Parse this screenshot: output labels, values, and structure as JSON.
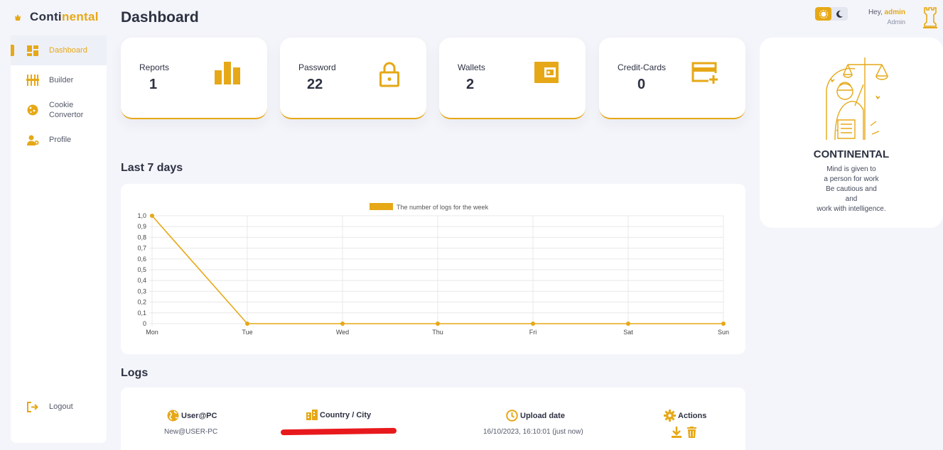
{
  "brand": {
    "part1": "Conti",
    "part2": "nental"
  },
  "sidebar": {
    "items": [
      {
        "label": "Dashboard",
        "icon": "dashboard-icon",
        "active": true
      },
      {
        "label": "Builder",
        "icon": "builder-icon"
      },
      {
        "label": "Cookie Convertor",
        "icon": "cookie-icon"
      },
      {
        "label": "Profile",
        "icon": "profile-icon"
      }
    ],
    "logout": "Logout"
  },
  "header": {
    "title": "Dashboard",
    "greeting": "Hey,",
    "username": "admin",
    "role": "Admin"
  },
  "stats": [
    {
      "label": "Reports",
      "value": "1",
      "icon": "bar-chart-icon"
    },
    {
      "label": "Password",
      "value": "22",
      "icon": "lock-icon"
    },
    {
      "label": "Wallets",
      "value": "2",
      "icon": "wallet-icon"
    },
    {
      "label": "Credit-Cards",
      "value": "0",
      "icon": "credit-card-add-icon"
    }
  ],
  "profile_card": {
    "name": "CONTINENTAL",
    "motto": [
      "Mind is given to",
      "a person for work",
      "Be cautious and",
      "and",
      "work with intelligence."
    ]
  },
  "sections": {
    "chart_title": "Last 7 days",
    "logs_title": "Logs"
  },
  "chart_data": {
    "type": "line",
    "categories": [
      "Mon",
      "Tue",
      "Wed",
      "Thu",
      "Fri",
      "Sat",
      "Sun"
    ],
    "series": [
      {
        "name": "The number of logs for the week",
        "values": [
          1,
          0,
          0,
          0,
          0,
          0,
          0
        ],
        "color": "#e6a817"
      }
    ],
    "ylim": [
      0,
      1
    ],
    "yticks": [
      "1,0",
      "0,9",
      "0,8",
      "0,7",
      "0,6",
      "0,5",
      "0,4",
      "0,3",
      "0,2",
      "0,1",
      "0"
    ],
    "legend": "top",
    "grid": true
  },
  "logs": {
    "headers": {
      "user": "User@PC",
      "country": "Country / City",
      "upload": "Upload date",
      "actions": "Actions"
    },
    "rows": [
      {
        "user": "New@USER-PC",
        "upload": "16/10/2023, 16:10:01 (just now)"
      }
    ]
  },
  "colors": {
    "accent": "#e6a817",
    "text": "#2d3142",
    "background": "#f4f5fa",
    "redaction": "#e8191c"
  }
}
